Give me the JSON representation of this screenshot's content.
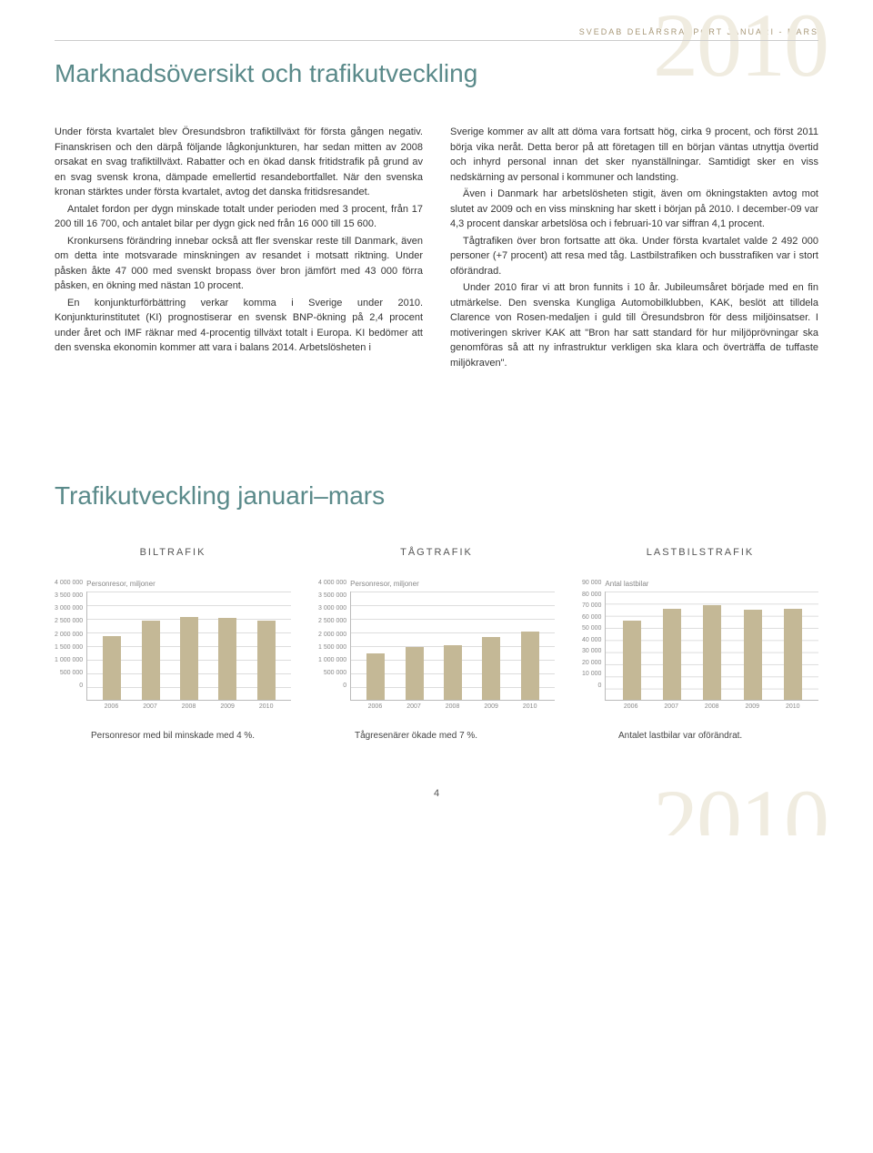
{
  "header": {
    "strip": "SVEDAB DELÅRSRAPPORT JANUARI - MARS",
    "year_watermark": "2010"
  },
  "title_main": "Marknadsöversikt och trafikutveckling",
  "body": {
    "left": [
      "Under första kvartalet blev Öresundsbron trafiktillväxt för första gången negativ. Finanskrisen och den därpå följande lågkonjunkturen, har sedan mitten av 2008 orsakat en svag trafiktillväxt. Rabatter och en ökad dansk fritidstrafik på grund av en svag svensk krona, dämpade emellertid resandebortfallet. När den svenska kronan stärktes under första kvartalet, avtog det danska fritidsresandet.",
      "Antalet fordon per dygn minskade totalt under perioden med 3 procent, från 17 200 till 16 700, och antalet bilar per dygn gick ned från 16 000 till 15 600.",
      "Kronkursens förändring innebar också att fler svenskar reste till Danmark, även om detta inte motsvarade minskningen av resandet i motsatt riktning. Under påsken åkte 47 000 med svenskt bropass över bron jämfört med 43 000 förra påsken, en ökning med nästan 10 procent.",
      "En konjunkturförbättring verkar komma i Sverige under 2010. Konjunkturinstitutet (KI) prognostiserar en svensk BNP-ökning på 2,4 procent under året och IMF räknar med 4-procentig tillväxt totalt i Europa. KI bedömer att den svenska ekonomin kommer att vara i balans 2014. Arbetslösheten i"
    ],
    "right": [
      "Sverige kommer av allt att döma vara fortsatt hög, cirka 9 procent, och först 2011 börja vika neråt. Detta beror på att företagen till en början väntas utnyttja övertid och inhyrd personal innan det sker nyanställningar. Samtidigt sker en viss nedskärning av personal i kommuner och landsting.",
      "Även i Danmark har arbetslösheten stigit, även om ökningstakten avtog mot slutet av 2009 och en viss minskning har skett i början på 2010. I december-09 var 4,3 procent danskar arbetslösa och i februari-10 var siffran 4,1 procent.",
      "Tågtrafiken över bron fortsatte att öka. Under första kvartalet valde 2 492 000 personer (+7 procent) att resa med tåg. Lastbilstrafiken och busstrafiken var i stort oförändrad.",
      "Under 2010 firar vi att bron funnits i 10 år. Jubileumsåret började med en fin utmärkelse. Den svenska Kungliga Automobilklubben, KAK, beslöt att tilldela Clarence von Rosen-medaljen i guld till Öresundsbron för dess miljöinsatser. I motiveringen skriver KAK att \"Bron har satt standard för hur miljöprövningar ska genomföras så att ny infrastruktur verkligen ska klara och överträffa de tuffaste miljökraven\"."
    ]
  },
  "title_section": "Trafikutveckling januari–mars",
  "charts": {
    "bar_color": "#c4b896",
    "grid_color": "#dddddd",
    "axis_color": "#bbbbbb",
    "years": [
      "2006",
      "2007",
      "2008",
      "2009",
      "2010"
    ],
    "bil": {
      "title": "BILTRAFIK",
      "subtitle": "Personresor, miljoner",
      "yticks": [
        "4 000 000",
        "3 500 000",
        "3 000 000",
        "2 500 000",
        "2 000 000",
        "1 500 000",
        "1 000 000",
        "500 000",
        "0"
      ],
      "ymax": 4000000,
      "values": [
        2350000,
        2900000,
        3050000,
        3000000,
        2900000
      ],
      "caption": "Personresor med bil minskade med 4 %."
    },
    "tag": {
      "title": "TÅGTRAFIK",
      "subtitle": "Personresor, miljoner",
      "yticks": [
        "4 000 000",
        "3 500 000",
        "3 000 000",
        "2 500 000",
        "2 000 000",
        "1 500 000",
        "1 000 000",
        "500 000",
        "0"
      ],
      "ymax": 4000000,
      "values": [
        1700000,
        1950000,
        2000000,
        2300000,
        2492000
      ],
      "caption": "Tågresenärer ökade med 7 %."
    },
    "last": {
      "title": "LASTBILSTRAFIK",
      "subtitle": "Antal lastbilar",
      "yticks": [
        "90 000",
        "80 000",
        "70 000",
        "60 000",
        "50 000",
        "40 000",
        "30 000",
        "20 000",
        "10 000",
        "0"
      ],
      "ymax": 90000,
      "values": [
        65000,
        75000,
        78000,
        74000,
        75000
      ],
      "caption": "Antalet lastbilar var oförändrat."
    }
  },
  "page_number": "4"
}
